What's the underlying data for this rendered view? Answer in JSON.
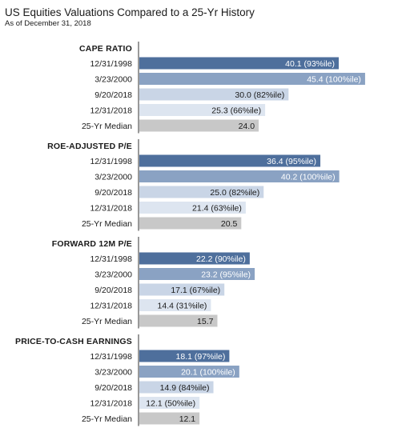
{
  "chart_data": {
    "type": "bar",
    "orientation": "horizontal",
    "title": "US Equities Valuations Compared to a 25-Yr History",
    "subtitle": "As of December 31, 2018",
    "groups": [
      {
        "name": "CAPE RATIO",
        "rows": [
          {
            "label": "12/31/1998",
            "value": 40.1,
            "data_label": "40.1 (93%ile)",
            "color": "#4e6f9c",
            "text_color": "#ffffff"
          },
          {
            "label": "3/23/2000",
            "value": 45.4,
            "data_label": "45.4 (100%ile)",
            "color": "#8aa2c3",
            "text_color": "#ffffff"
          },
          {
            "label": "9/20/2018",
            "value": 30.0,
            "data_label": "30.0 (82%ile)",
            "color": "#c9d5e6",
            "text_color": "#1a1a1a"
          },
          {
            "label": "12/31/2018",
            "value": 25.3,
            "data_label": "25.3 (66%ile)",
            "color": "#dde5f0",
            "text_color": "#1a1a1a"
          },
          {
            "label": "25-Yr Median",
            "value": 24.0,
            "data_label": "24.0",
            "color": "#c8c8c8",
            "text_color": "#1a1a1a"
          }
        ]
      },
      {
        "name": "ROE-ADJUSTED P/E",
        "rows": [
          {
            "label": "12/31/1998",
            "value": 36.4,
            "data_label": "36.4 (95%ile)",
            "color": "#4e6f9c",
            "text_color": "#ffffff"
          },
          {
            "label": "3/23/2000",
            "value": 40.2,
            "data_label": "40.2 (100%ile)",
            "color": "#8aa2c3",
            "text_color": "#ffffff"
          },
          {
            "label": "9/20/2018",
            "value": 25.0,
            "data_label": "25.0 (82%ile)",
            "color": "#c9d5e6",
            "text_color": "#1a1a1a"
          },
          {
            "label": "12/31/2018",
            "value": 21.4,
            "data_label": "21.4 (63%ile)",
            "color": "#dde5f0",
            "text_color": "#1a1a1a"
          },
          {
            "label": "25-Yr Median",
            "value": 20.5,
            "data_label": "20.5",
            "color": "#c8c8c8",
            "text_color": "#1a1a1a"
          }
        ]
      },
      {
        "name": "FORWARD 12M P/E",
        "rows": [
          {
            "label": "12/31/1998",
            "value": 22.2,
            "data_label": "22.2 (90%ile)",
            "color": "#4e6f9c",
            "text_color": "#ffffff"
          },
          {
            "label": "3/23/2000",
            "value": 23.2,
            "data_label": "23.2 (95%ile)",
            "color": "#8aa2c3",
            "text_color": "#ffffff"
          },
          {
            "label": "9/20/2018",
            "value": 17.1,
            "data_label": "17.1 (67%ile)",
            "color": "#c9d5e6",
            "text_color": "#1a1a1a"
          },
          {
            "label": "12/31/2018",
            "value": 14.4,
            "data_label": "14.4 (31%ile)",
            "color": "#dde5f0",
            "text_color": "#1a1a1a"
          },
          {
            "label": "25-Yr Median",
            "value": 15.7,
            "data_label": "15.7",
            "color": "#c8c8c8",
            "text_color": "#1a1a1a"
          }
        ]
      },
      {
        "name": "PRICE-TO-CASH EARNINGS",
        "rows": [
          {
            "label": "12/31/1998",
            "value": 18.1,
            "data_label": "18.1 (97%ile)",
            "color": "#4e6f9c",
            "text_color": "#ffffff"
          },
          {
            "label": "3/23/2000",
            "value": 20.1,
            "data_label": "20.1 (100%ile)",
            "color": "#8aa2c3",
            "text_color": "#ffffff"
          },
          {
            "label": "9/20/2018",
            "value": 14.9,
            "data_label": "14.9 (84%ile)",
            "color": "#c9d5e6",
            "text_color": "#1a1a1a"
          },
          {
            "label": "12/31/2018",
            "value": 12.1,
            "data_label": "12.1 (50%ile)",
            "color": "#dde5f0",
            "text_color": "#1a1a1a"
          },
          {
            "label": "25-Yr Median",
            "value": 12.1,
            "data_label": "12.1",
            "color": "#c8c8c8",
            "text_color": "#1a1a1a"
          }
        ]
      }
    ]
  }
}
